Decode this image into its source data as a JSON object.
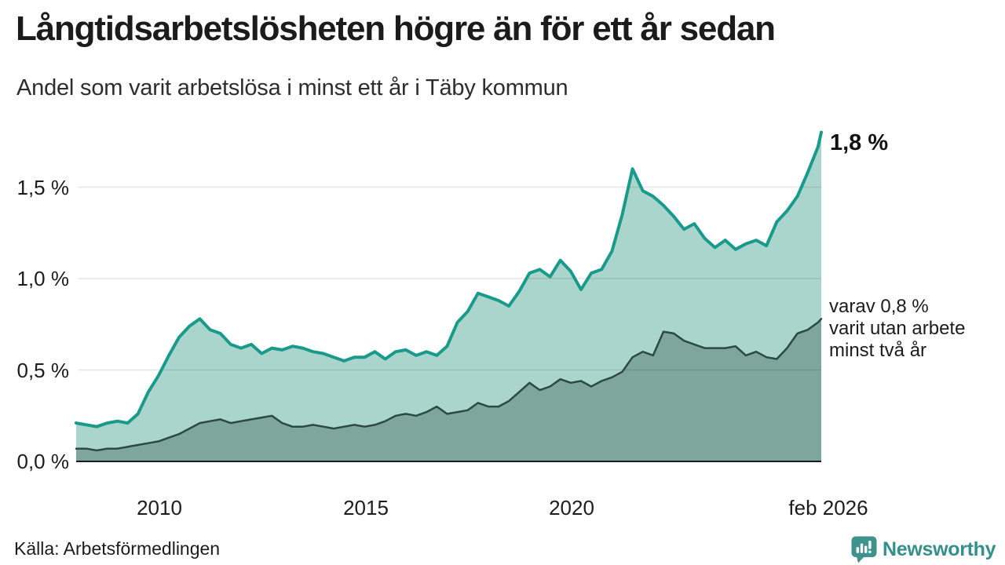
{
  "header": {
    "title": "Långtidsarbetslösheten högre än för ett år sedan",
    "subtitle": "Andel som varit arbetslösa i minst ett år i Täby kommun"
  },
  "chart_data": {
    "type": "area",
    "title": "Långtidsarbetslösheten högre än för ett år sedan",
    "subtitle": "Andel som varit arbetslösa i minst ett år i Täby kommun",
    "unit": "%",
    "xlim": [
      2008,
      2026.08
    ],
    "ylim": [
      0,
      1.85
    ],
    "grid": "horizontal",
    "legend": "none",
    "yticks": [
      {
        "label": "0,0 %",
        "value": 0
      },
      {
        "label": "0,5 %",
        "value": 0.5
      },
      {
        "label": "1,0 %",
        "value": 1.0
      },
      {
        "label": "1,5 %",
        "value": 1.5
      }
    ],
    "xticks": [
      {
        "label": "2010",
        "value": 2010
      },
      {
        "label": "2015",
        "value": 2015
      },
      {
        "label": "2020",
        "value": 2020
      },
      {
        "label": "feb 2026",
        "value": 2026.04
      }
    ],
    "x": [
      2008,
      2008.25,
      2008.5,
      2008.75,
      2009,
      2009.25,
      2009.5,
      2009.75,
      2010,
      2010.25,
      2010.5,
      2010.75,
      2011,
      2011.25,
      2011.5,
      2011.75,
      2012,
      2012.25,
      2012.5,
      2012.75,
      2013,
      2013.25,
      2013.5,
      2013.75,
      2014,
      2014.25,
      2014.5,
      2014.75,
      2015,
      2015.25,
      2015.5,
      2015.75,
      2016,
      2016.25,
      2016.5,
      2016.75,
      2017,
      2017.25,
      2017.5,
      2017.75,
      2018,
      2018.25,
      2018.5,
      2018.75,
      2019,
      2019.25,
      2019.5,
      2019.75,
      2020,
      2020.25,
      2020.5,
      2020.75,
      2021,
      2021.25,
      2021.5,
      2021.75,
      2022,
      2022.25,
      2022.5,
      2022.75,
      2023,
      2023.25,
      2023.5,
      2023.75,
      2024,
      2024.25,
      2024.5,
      2024.75,
      2025,
      2025.25,
      2025.5,
      2025.75,
      2026,
      2026.08
    ],
    "series": [
      {
        "name": "Arbetslösa minst ett år",
        "color": "#1a9a8b",
        "fill": "#aad5cd",
        "end_value": 1.8,
        "values": [
          0.21,
          0.2,
          0.19,
          0.21,
          0.22,
          0.21,
          0.26,
          0.38,
          0.47,
          0.58,
          0.68,
          0.74,
          0.78,
          0.72,
          0.7,
          0.64,
          0.62,
          0.64,
          0.59,
          0.62,
          0.61,
          0.63,
          0.62,
          0.6,
          0.59,
          0.57,
          0.55,
          0.57,
          0.57,
          0.6,
          0.56,
          0.6,
          0.61,
          0.58,
          0.6,
          0.58,
          0.63,
          0.76,
          0.82,
          0.92,
          0.9,
          0.88,
          0.85,
          0.93,
          1.03,
          1.05,
          1.01,
          1.1,
          1.04,
          0.94,
          1.03,
          1.05,
          1.15,
          1.35,
          1.6,
          1.48,
          1.45,
          1.4,
          1.34,
          1.27,
          1.3,
          1.22,
          1.17,
          1.21,
          1.16,
          1.19,
          1.21,
          1.18,
          1.31,
          1.37,
          1.45,
          1.58,
          1.72,
          1.8
        ]
      },
      {
        "name": "Utan arbete minst två år",
        "color": "#2a4a42",
        "fill": "#7ea69c",
        "end_value": 0.8,
        "values": [
          0.07,
          0.07,
          0.06,
          0.07,
          0.07,
          0.08,
          0.09,
          0.1,
          0.11,
          0.13,
          0.15,
          0.18,
          0.21,
          0.22,
          0.23,
          0.21,
          0.22,
          0.23,
          0.24,
          0.25,
          0.21,
          0.19,
          0.19,
          0.2,
          0.19,
          0.18,
          0.19,
          0.2,
          0.19,
          0.2,
          0.22,
          0.25,
          0.26,
          0.25,
          0.27,
          0.3,
          0.26,
          0.27,
          0.28,
          0.32,
          0.3,
          0.3,
          0.33,
          0.38,
          0.43,
          0.39,
          0.41,
          0.45,
          0.43,
          0.44,
          0.41,
          0.44,
          0.46,
          0.49,
          0.57,
          0.6,
          0.58,
          0.71,
          0.7,
          0.66,
          0.64,
          0.62,
          0.62,
          0.62,
          0.63,
          0.58,
          0.6,
          0.57,
          0.56,
          0.62,
          0.7,
          0.72,
          0.76,
          0.78
        ]
      }
    ],
    "annotations": {
      "end_value_label": "1,8 %",
      "sub_line_1": "varav 0,8 %",
      "sub_line_2": "varit utan arbete",
      "sub_line_3": "minst två år"
    }
  },
  "footer": {
    "source": "Källa: Arbetsförmedlingen",
    "brand": "Newsworthy",
    "brand_color": "#33908a",
    "brand_icon": "newsworthy-speech-bubble-barchart-icon"
  }
}
